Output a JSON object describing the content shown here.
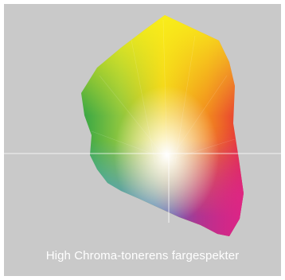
{
  "caption": "High Chroma-tonerens fargespekter",
  "colors": {
    "background": "#c9c9c9",
    "frame": "#ffffff",
    "caption_text": "#ffffff"
  },
  "image": {
    "subject": "gamut-diagram",
    "gamut_colors": [
      "#f7e61d",
      "#f39a1e",
      "#e8203a",
      "#d81b7c",
      "#8e2b8f",
      "#2e6fb7",
      "#3fb0e4",
      "#3bb04a",
      "#8cc63f"
    ]
  }
}
